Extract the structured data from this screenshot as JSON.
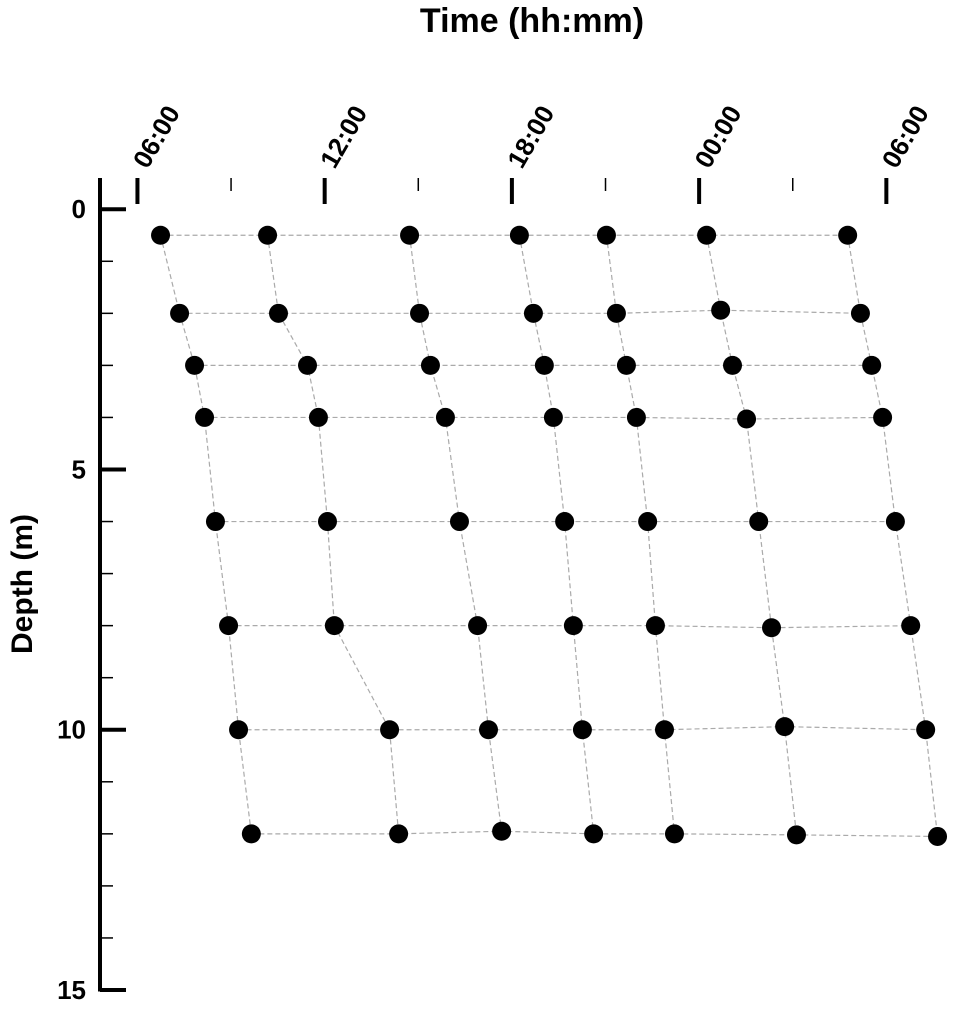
{
  "chart_data": {
    "type": "scatter",
    "xlabel": "Time (hh:mm)",
    "ylabel": "Depth (m)",
    "xlim": [
      4.8,
      32.2
    ],
    "ylim": [
      -0.6,
      15
    ],
    "invert_y": true,
    "x_axis_position": "top",
    "xticks": [
      {
        "value": 6,
        "label": "06:00"
      },
      {
        "value": 12,
        "label": "12:00"
      },
      {
        "value": 18,
        "label": "18:00"
      },
      {
        "value": 24,
        "label": "00:00"
      },
      {
        "value": 30,
        "label": "06:00"
      }
    ],
    "xminorticks": [
      9,
      15,
      21,
      27
    ],
    "yticks": [
      0,
      5,
      10,
      15
    ],
    "yminorticks": [
      1,
      2,
      3,
      4,
      6,
      7,
      8,
      9,
      11,
      12,
      13,
      14
    ],
    "marker_color": "#000000",
    "line_color": "#aaaaaa",
    "series": [
      {
        "x": [
          6.74,
          7.35,
          7.83,
          8.15,
          8.5,
          8.92,
          9.24,
          9.65
        ],
        "y": [
          0.5,
          2,
          3,
          4,
          6,
          8,
          10,
          12
        ]
      },
      {
        "x": [
          10.17,
          10.52,
          11.45,
          11.8,
          12.09,
          12.31,
          14.08,
          14.37
        ],
        "y": [
          0.5,
          2,
          3,
          4,
          6,
          8,
          10,
          12
        ]
      },
      {
        "x": [
          14.72,
          15.04,
          15.39,
          15.87,
          16.32,
          16.9,
          17.25,
          17.67
        ],
        "y": [
          0.5,
          2,
          3,
          4,
          6,
          8,
          10,
          11.95
        ]
      },
      {
        "x": [
          18.24,
          18.69,
          19.04,
          19.33,
          19.69,
          19.97,
          20.26,
          20.62
        ],
        "y": [
          0.5,
          2,
          3,
          4,
          6,
          8,
          10,
          12
        ]
      },
      {
        "x": [
          21.03,
          21.35,
          21.67,
          21.99,
          22.35,
          22.6,
          22.89,
          23.21
        ],
        "y": [
          0.5,
          2,
          3,
          4,
          6,
          8,
          10,
          12
        ]
      },
      {
        "x": [
          24.24,
          24.69,
          25.07,
          25.52,
          25.91,
          26.32,
          26.74,
          27.12
        ],
        "y": [
          0.5,
          1.94,
          3,
          4.03,
          6,
          8.04,
          9.94,
          12.02
        ]
      },
      {
        "x": [
          28.76,
          29.17,
          29.53,
          29.88,
          30.29,
          30.78,
          31.26,
          31.64
        ],
        "y": [
          0.5,
          2,
          3,
          4,
          6,
          8,
          10,
          12.05
        ]
      }
    ]
  }
}
